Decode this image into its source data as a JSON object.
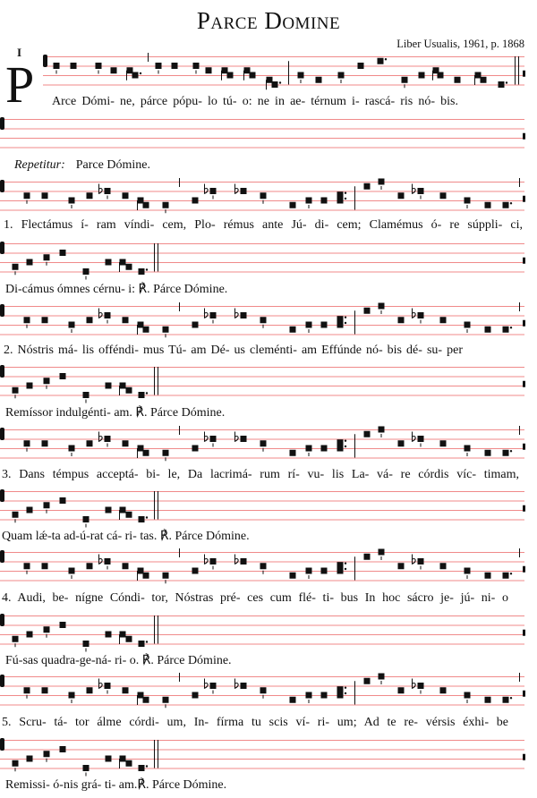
{
  "title": "Parce Domine",
  "source": "Liber Usualis, 1961, p. 1868",
  "mode": "I",
  "initial": "P",
  "colors": {
    "staff_line": "#f08a8a",
    "notes": "#111111"
  },
  "antiphon": "Arce Dómi- ne, párce pópu- lo tú- o: ne in ae- térnum i- rascá- ris nó- bis.",
  "repetitur": {
    "label": "Repetitur:",
    "text": "Parce Dómine."
  },
  "verses": [
    {
      "line1": "1. Flectámus í- ram víndi- cem, Plo- rémus ante Jú- di- cem; Clamémus ó- re súppli- ci,",
      "line2": "Di-cámus ómnes cérnu- i: ℟. Párce Dómine."
    },
    {
      "line1": "2. Nóstris má- lis offéndi- mus Tú- am Dé- us cleménti- am Effúnde nó- bis dé- su- per",
      "line2": "Remíssor indulgénti- am. ℟. Párce Dómine."
    },
    {
      "line1": "3. Dans témpus acceptá- bi- le, Da lacrimá- rum rí- vu- lis La- vá- re córdis víc- timam,",
      "line2": "Quam lǽ-ta ad-ú-rat cá- ri- tas. ℟. Párce Dómine."
    },
    {
      "line1": "4. Audi, be- nígne Cóndi- tor, Nóstras pré- ces cum flé- ti- bus In hoc sácro je- jú- ni- o",
      "line2": "Fú-sas quadra-ge-ná- ri- o. ℟. Párce Dómine."
    },
    {
      "line1": "5. Scru- tá- tor álme córdi- um, In- fírma tu scis ví- ri- um; Ad te re- vérsis éxhi- be",
      "line2": "Remissi- ó-nis grá- ti- am.℟. Párce Dómine."
    }
  ]
}
